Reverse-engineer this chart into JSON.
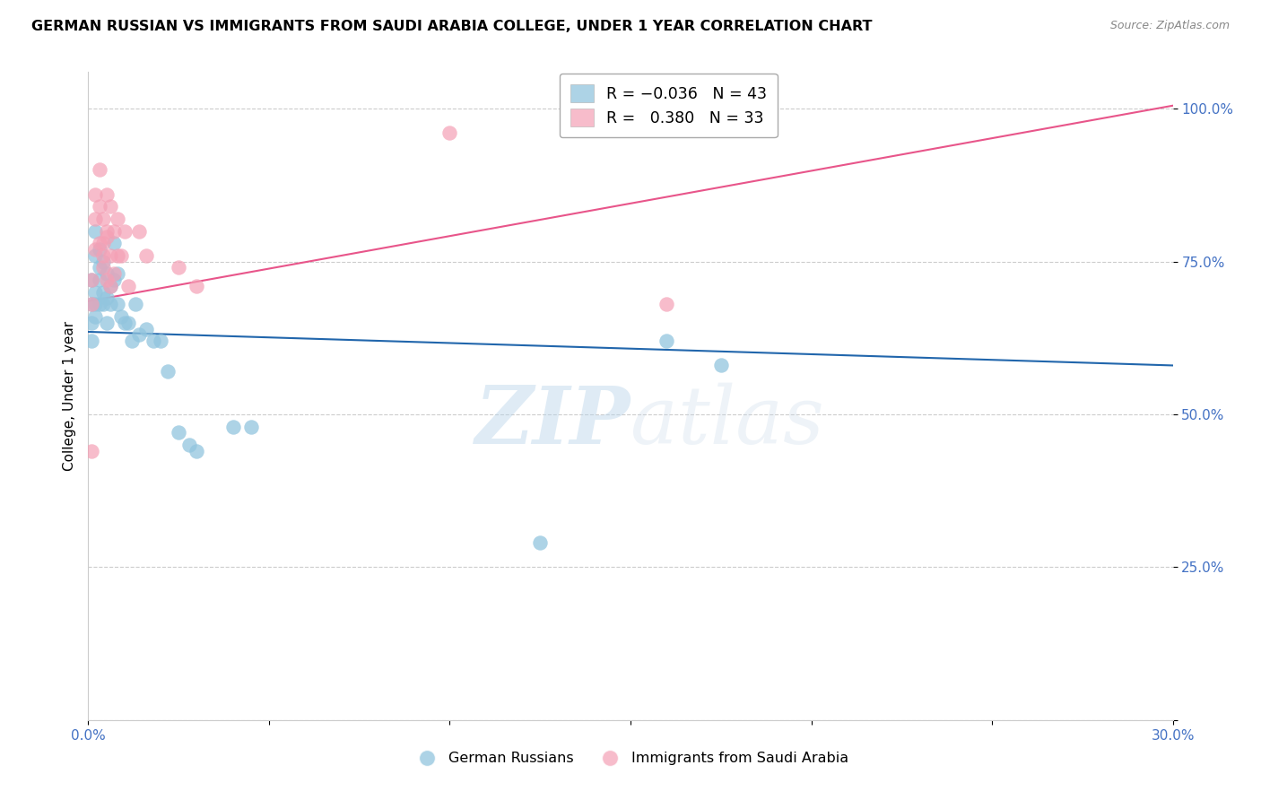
{
  "title": "GERMAN RUSSIAN VS IMMIGRANTS FROM SAUDI ARABIA COLLEGE, UNDER 1 YEAR CORRELATION CHART",
  "source": "Source: ZipAtlas.com",
  "ylabel_label": "College, Under 1 year",
  "ytick_labels": [
    "",
    "25.0%",
    "50.0%",
    "75.0%",
    "100.0%"
  ],
  "ytick_vals": [
    0.0,
    0.25,
    0.5,
    0.75,
    1.0
  ],
  "xtick_labels": [
    "0.0%",
    "",
    "",
    "",
    "",
    "",
    "30.0%"
  ],
  "xtick_vals": [
    0.0,
    0.05,
    0.1,
    0.15,
    0.2,
    0.25,
    0.3
  ],
  "xlim": [
    0.0,
    0.3
  ],
  "ylim": [
    0.0,
    1.06
  ],
  "blue_color": "#92c5de",
  "pink_color": "#f4a0b5",
  "blue_line_color": "#2166ac",
  "pink_line_color": "#e8558a",
  "r_blue": -0.036,
  "n_blue": 43,
  "r_pink": 0.38,
  "n_pink": 33,
  "watermark_zip": "ZIP",
  "watermark_atlas": "atlas",
  "legend_label_blue": "German Russians",
  "legend_label_pink": "Immigrants from Saudi Arabia",
  "blue_x": [
    0.001,
    0.001,
    0.001,
    0.001,
    0.002,
    0.002,
    0.002,
    0.002,
    0.002,
    0.003,
    0.003,
    0.003,
    0.003,
    0.004,
    0.004,
    0.004,
    0.005,
    0.005,
    0.005,
    0.006,
    0.006,
    0.007,
    0.007,
    0.008,
    0.008,
    0.009,
    0.01,
    0.011,
    0.012,
    0.013,
    0.014,
    0.016,
    0.018,
    0.02,
    0.022,
    0.025,
    0.028,
    0.03,
    0.16,
    0.175,
    0.04,
    0.045,
    0.125
  ],
  "blue_y": [
    0.68,
    0.65,
    0.62,
    0.72,
    0.7,
    0.68,
    0.66,
    0.76,
    0.8,
    0.72,
    0.68,
    0.74,
    0.77,
    0.75,
    0.7,
    0.68,
    0.73,
    0.69,
    0.65,
    0.71,
    0.68,
    0.78,
    0.72,
    0.68,
    0.73,
    0.66,
    0.65,
    0.65,
    0.62,
    0.68,
    0.63,
    0.64,
    0.62,
    0.62,
    0.57,
    0.47,
    0.45,
    0.44,
    0.62,
    0.58,
    0.48,
    0.48,
    0.29
  ],
  "pink_x": [
    0.001,
    0.001,
    0.001,
    0.002,
    0.002,
    0.002,
    0.003,
    0.003,
    0.003,
    0.004,
    0.004,
    0.004,
    0.004,
    0.005,
    0.005,
    0.005,
    0.005,
    0.006,
    0.006,
    0.006,
    0.007,
    0.007,
    0.008,
    0.008,
    0.009,
    0.01,
    0.011,
    0.014,
    0.016,
    0.025,
    0.03,
    0.1,
    0.16
  ],
  "pink_y": [
    0.44,
    0.68,
    0.72,
    0.77,
    0.82,
    0.86,
    0.78,
    0.84,
    0.9,
    0.74,
    0.78,
    0.82,
    0.76,
    0.8,
    0.86,
    0.79,
    0.72,
    0.84,
    0.76,
    0.71,
    0.8,
    0.73,
    0.82,
    0.76,
    0.76,
    0.8,
    0.71,
    0.8,
    0.76,
    0.74,
    0.71,
    0.96,
    0.68
  ]
}
